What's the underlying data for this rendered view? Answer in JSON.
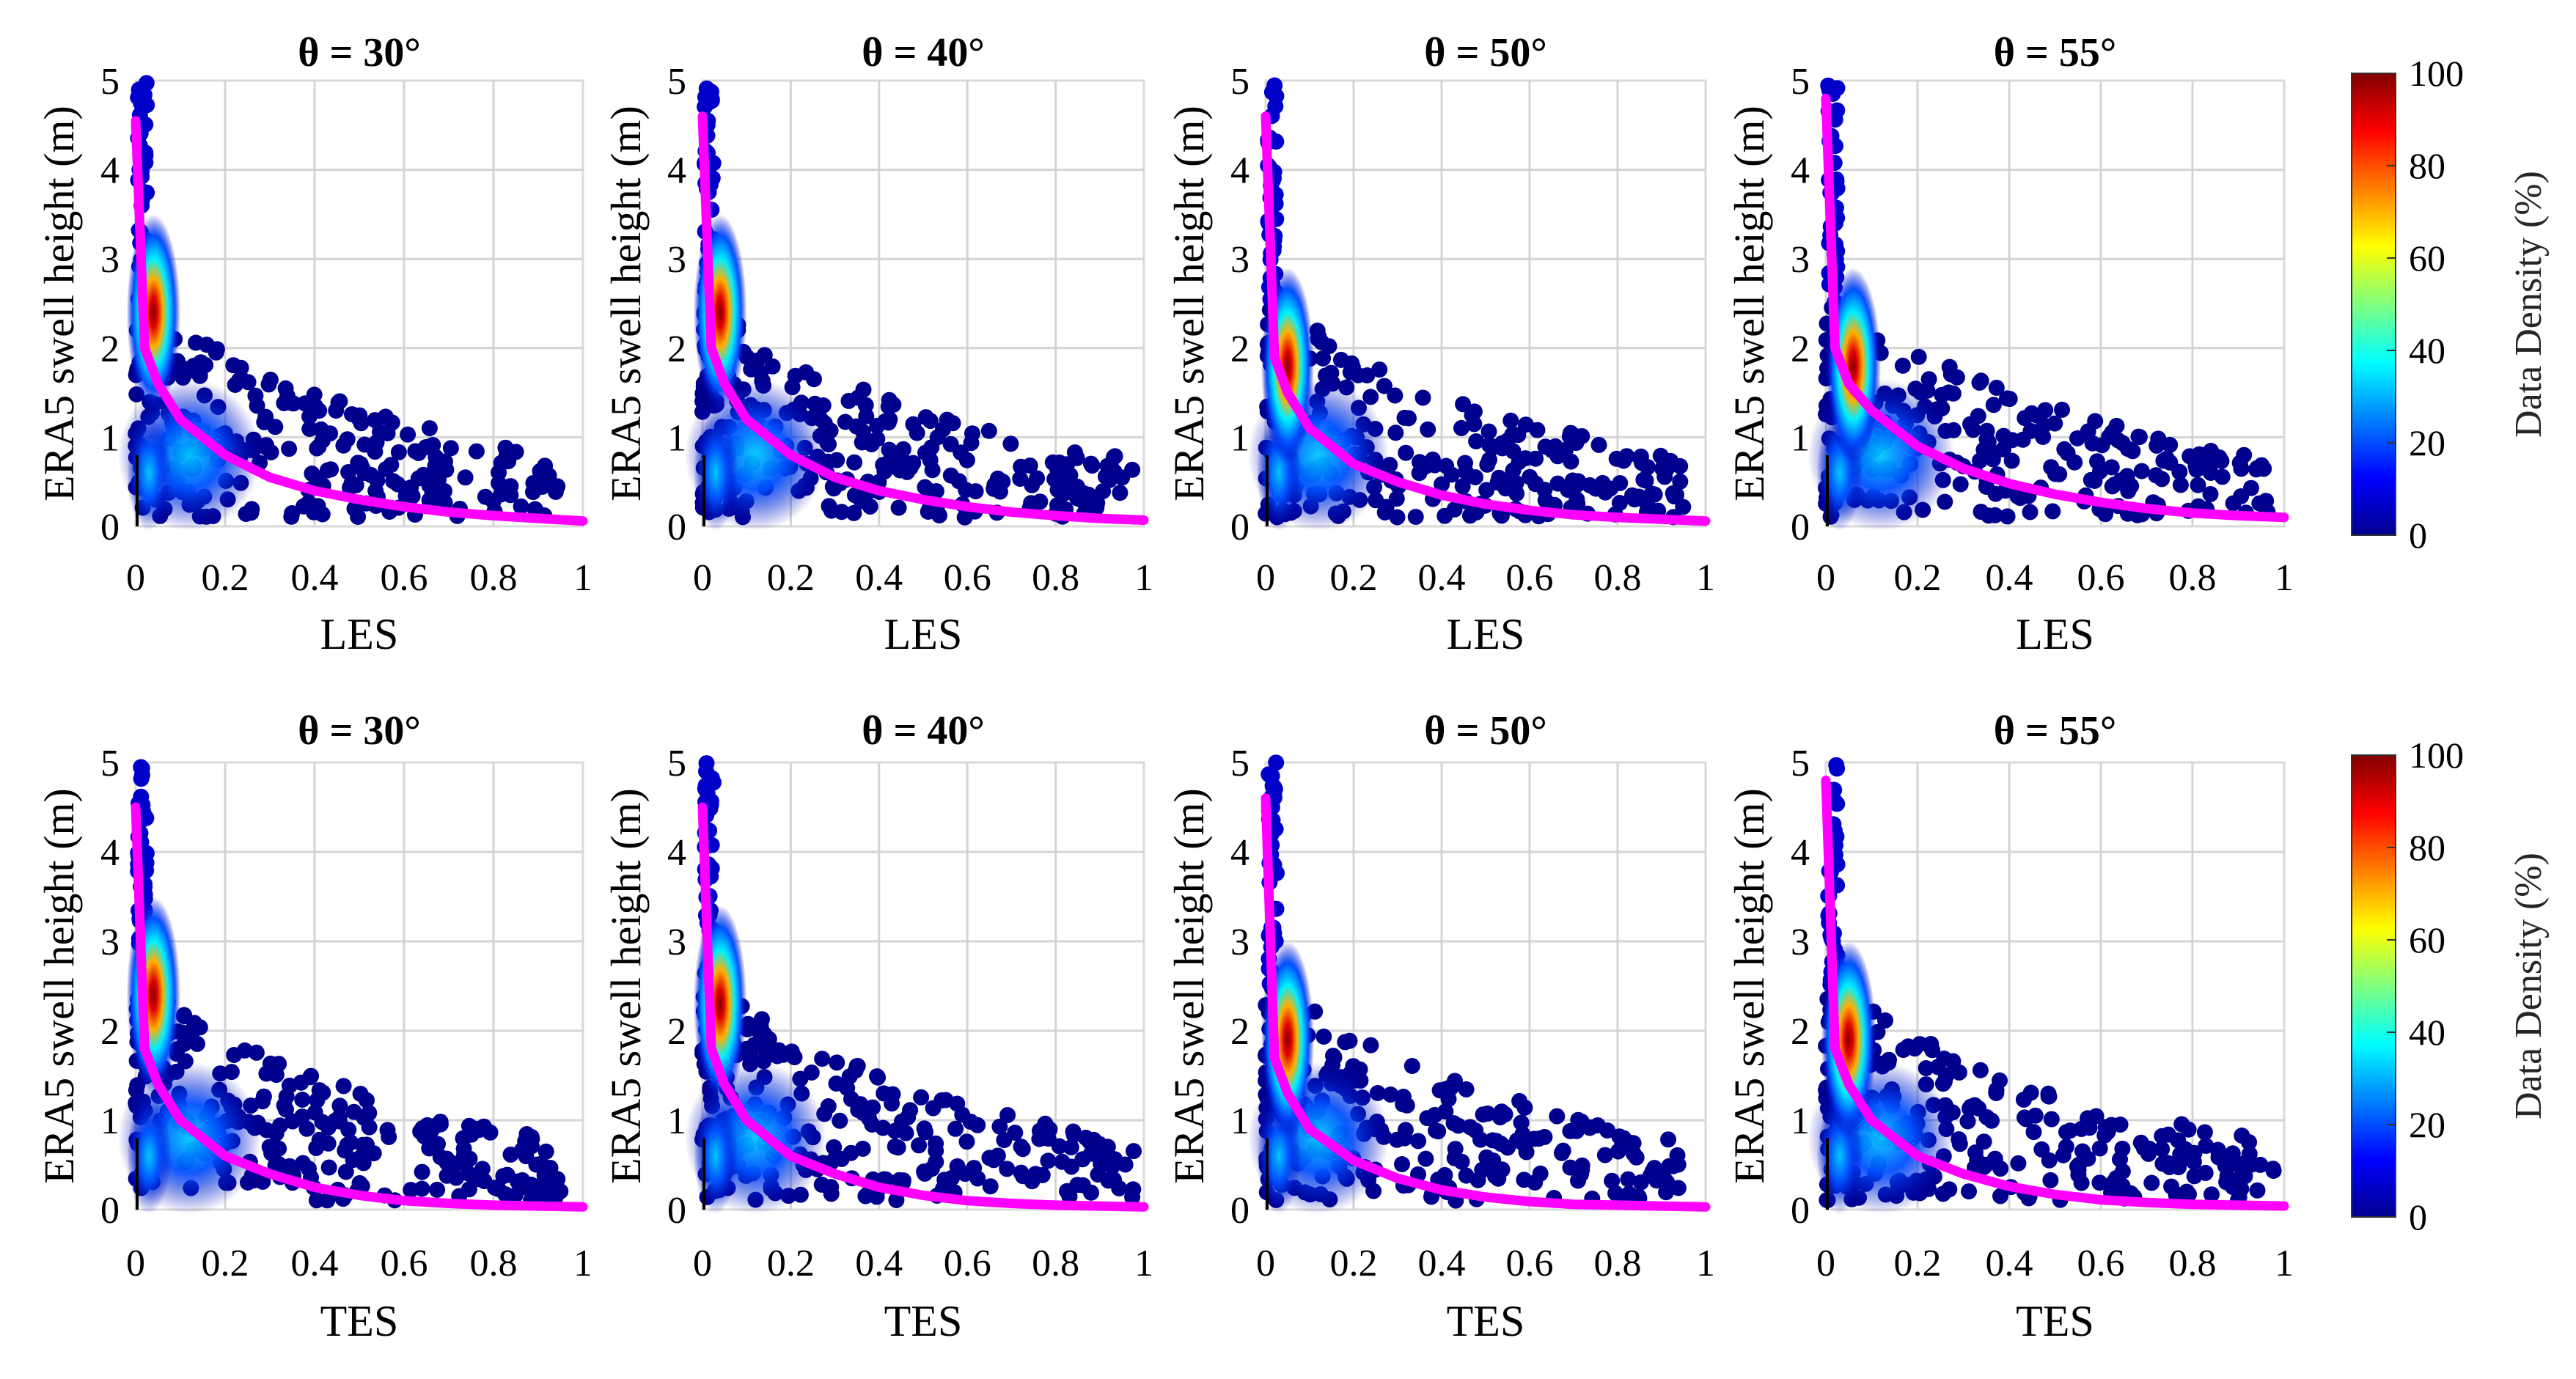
{
  "colors": {
    "fit_curve": "#ff00ff",
    "sparse_points": "#00008f",
    "colormap": [
      "#00008f",
      "#0000ff",
      "#00ffff",
      "#ffff00",
      "#ff0000",
      "#800000"
    ]
  },
  "colorbars": [
    {
      "label": "Data Density (%)",
      "ticks": [
        "0",
        "20",
        "40",
        "60",
        "80",
        "100"
      ],
      "range": [
        0,
        100
      ]
    },
    {
      "label": "Data Density (%)",
      "ticks": [
        "0",
        "20",
        "40",
        "60",
        "80",
        "100"
      ],
      "range": [
        0,
        100
      ]
    }
  ],
  "chart_data": [
    {
      "type": "scatter",
      "row": 0,
      "title": "θ = 30°",
      "xlabel": "LES",
      "ylabel": "ERA5 swell height (m)",
      "xlim": [
        0,
        1
      ],
      "ylim": [
        0,
        5
      ],
      "x_ticks": [
        "0",
        "0.2",
        "0.4",
        "0.6",
        "0.8",
        "1"
      ],
      "y_ticks": [
        "0",
        "1",
        "2",
        "3",
        "4",
        "5"
      ],
      "density_peak": {
        "x": 0.04,
        "y": 2.4,
        "density_pct": 100
      },
      "tail_max_x": 0.95,
      "fit_curve": {
        "name": "fit",
        "x": [
          0.0,
          0.02,
          0.05,
          0.1,
          0.2,
          0.3,
          0.4,
          0.5,
          0.6,
          0.7,
          0.8,
          0.9,
          1.0
        ],
        "y": [
          4.55,
          2.0,
          1.6,
          1.2,
          0.8,
          0.55,
          0.4,
          0.3,
          0.22,
          0.16,
          0.12,
          0.09,
          0.06
        ]
      }
    },
    {
      "type": "scatter",
      "row": 0,
      "title": "θ = 40°",
      "xlabel": "LES",
      "ylabel": "ERA5 swell height (m)",
      "xlim": [
        0,
        1
      ],
      "ylim": [
        0,
        5
      ],
      "x_ticks": [
        "0",
        "0.2",
        "0.4",
        "0.6",
        "0.8",
        "1"
      ],
      "y_ticks": [
        "0",
        "1",
        "2",
        "3",
        "4",
        "5"
      ],
      "density_peak": {
        "x": 0.04,
        "y": 2.4,
        "density_pct": 100
      },
      "tail_max_x": 0.98,
      "fit_curve": {
        "name": "fit",
        "x": [
          0.0,
          0.02,
          0.05,
          0.1,
          0.2,
          0.3,
          0.4,
          0.5,
          0.6,
          0.7,
          0.8,
          0.9,
          1.0
        ],
        "y": [
          4.6,
          2.0,
          1.6,
          1.2,
          0.8,
          0.55,
          0.4,
          0.3,
          0.22,
          0.16,
          0.12,
          0.09,
          0.07
        ]
      }
    },
    {
      "type": "scatter",
      "row": 0,
      "title": "θ = 50°",
      "xlabel": "LES",
      "ylabel": "ERA5 swell height (m)",
      "xlim": [
        0,
        1
      ],
      "ylim": [
        0,
        5
      ],
      "x_ticks": [
        "0",
        "0.2",
        "0.4",
        "0.6",
        "0.8",
        "1"
      ],
      "y_ticks": [
        "0",
        "1",
        "2",
        "3",
        "4",
        "5"
      ],
      "density_peak": {
        "x": 0.05,
        "y": 1.8,
        "density_pct": 100
      },
      "tail_max_x": 0.95,
      "fit_curve": {
        "name": "fit",
        "x": [
          0.0,
          0.02,
          0.05,
          0.1,
          0.2,
          0.3,
          0.4,
          0.5,
          0.6,
          0.7,
          0.8,
          0.9,
          1.0
        ],
        "y": [
          4.6,
          1.9,
          1.5,
          1.1,
          0.7,
          0.5,
          0.35,
          0.25,
          0.18,
          0.13,
          0.1,
          0.08,
          0.06
        ]
      }
    },
    {
      "type": "scatter",
      "row": 0,
      "title": "θ = 55°",
      "xlabel": "LES",
      "ylabel": "ERA5 swell height (m)",
      "xlim": [
        0,
        1
      ],
      "ylim": [
        0,
        5
      ],
      "x_ticks": [
        "0",
        "0.2",
        "0.4",
        "0.6",
        "0.8",
        "1"
      ],
      "y_ticks": [
        "0",
        "1",
        "2",
        "3",
        "4",
        "5"
      ],
      "density_peak": {
        "x": 0.06,
        "y": 1.8,
        "density_pct": 100
      },
      "tail_max_x": 0.98,
      "fit_curve": {
        "name": "fit",
        "x": [
          0.0,
          0.02,
          0.05,
          0.1,
          0.2,
          0.3,
          0.4,
          0.5,
          0.6,
          0.7,
          0.8,
          0.9,
          1.0
        ],
        "y": [
          4.8,
          2.0,
          1.6,
          1.3,
          0.9,
          0.65,
          0.48,
          0.36,
          0.27,
          0.2,
          0.15,
          0.12,
          0.1
        ]
      }
    },
    {
      "type": "scatter",
      "row": 1,
      "title": "θ = 30°",
      "xlabel": "TES",
      "ylabel": "ERA5 swell height (m)",
      "xlim": [
        0,
        1
      ],
      "ylim": [
        0,
        5
      ],
      "x_ticks": [
        "0",
        "0.2",
        "0.4",
        "0.6",
        "0.8",
        "1"
      ],
      "y_ticks": [
        "0",
        "1",
        "2",
        "3",
        "4",
        "5"
      ],
      "density_peak": {
        "x": 0.04,
        "y": 2.4,
        "density_pct": 100
      },
      "tail_max_x": 0.95,
      "fit_curve": {
        "name": "fit",
        "x": [
          0.0,
          0.02,
          0.05,
          0.1,
          0.2,
          0.3,
          0.4,
          0.5,
          0.6,
          0.7,
          0.8,
          0.9,
          1.0
        ],
        "y": [
          4.5,
          1.8,
          1.4,
          1.0,
          0.6,
          0.4,
          0.25,
          0.16,
          0.1,
          0.07,
          0.05,
          0.04,
          0.03
        ]
      }
    },
    {
      "type": "scatter",
      "row": 1,
      "title": "θ = 40°",
      "xlabel": "TES",
      "ylabel": "ERA5 swell height (m)",
      "xlim": [
        0,
        1
      ],
      "ylim": [
        0,
        5
      ],
      "x_ticks": [
        "0",
        "0.2",
        "0.4",
        "0.6",
        "0.8",
        "1"
      ],
      "y_ticks": [
        "0",
        "1",
        "2",
        "3",
        "4",
        "5"
      ],
      "density_peak": {
        "x": 0.04,
        "y": 2.3,
        "density_pct": 100
      },
      "tail_max_x": 0.98,
      "fit_curve": {
        "name": "fit",
        "x": [
          0.0,
          0.02,
          0.05,
          0.1,
          0.2,
          0.3,
          0.4,
          0.5,
          0.6,
          0.7,
          0.8,
          0.9,
          1.0
        ],
        "y": [
          4.5,
          1.8,
          1.4,
          1.0,
          0.6,
          0.4,
          0.25,
          0.16,
          0.1,
          0.07,
          0.05,
          0.04,
          0.03
        ]
      }
    },
    {
      "type": "scatter",
      "row": 1,
      "title": "θ = 50°",
      "xlabel": "TES",
      "ylabel": "ERA5 swell height (m)",
      "xlim": [
        0,
        1
      ],
      "ylim": [
        0,
        5
      ],
      "x_ticks": [
        "0",
        "0.2",
        "0.4",
        "0.6",
        "0.8",
        "1"
      ],
      "y_ticks": [
        "0",
        "1",
        "2",
        "3",
        "4",
        "5"
      ],
      "density_peak": {
        "x": 0.05,
        "y": 1.9,
        "density_pct": 100
      },
      "tail_max_x": 0.95,
      "fit_curve": {
        "name": "fit",
        "x": [
          0.0,
          0.02,
          0.05,
          0.1,
          0.2,
          0.3,
          0.4,
          0.5,
          0.6,
          0.7,
          0.8,
          0.9,
          1.0
        ],
        "y": [
          4.6,
          1.7,
          1.3,
          0.9,
          0.55,
          0.35,
          0.22,
          0.14,
          0.09,
          0.06,
          0.05,
          0.04,
          0.03
        ]
      }
    },
    {
      "type": "scatter",
      "row": 1,
      "title": "θ = 55°",
      "xlabel": "TES",
      "ylabel": "ERA5 swell height (m)",
      "xlim": [
        0,
        1
      ],
      "ylim": [
        0,
        5
      ],
      "x_ticks": [
        "0",
        "0.2",
        "0.4",
        "0.6",
        "0.8",
        "1"
      ],
      "y_ticks": [
        "0",
        "1",
        "2",
        "3",
        "4",
        "5"
      ],
      "density_peak": {
        "x": 0.05,
        "y": 1.9,
        "density_pct": 100
      },
      "tail_max_x": 0.98,
      "fit_curve": {
        "name": "fit",
        "x": [
          0.0,
          0.02,
          0.05,
          0.1,
          0.2,
          0.3,
          0.4,
          0.5,
          0.6,
          0.7,
          0.8,
          0.9,
          1.0
        ],
        "y": [
          4.8,
          1.8,
          1.4,
          1.0,
          0.6,
          0.4,
          0.26,
          0.17,
          0.11,
          0.08,
          0.06,
          0.05,
          0.04
        ]
      }
    }
  ]
}
